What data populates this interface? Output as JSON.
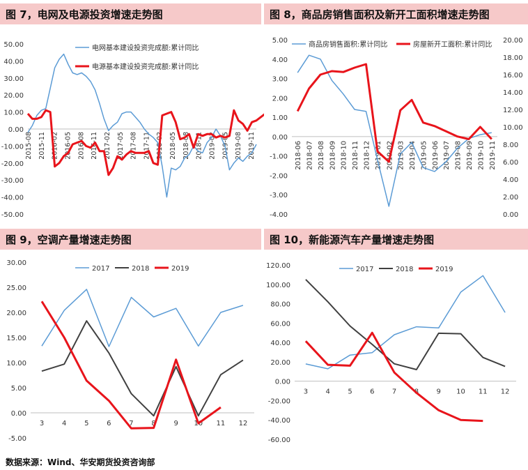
{
  "footer": "数据来源：Wind、华安期货投资咨询部",
  "colors": {
    "blue": "#5b9bd5",
    "red": "#e8141b",
    "dark": "#404040",
    "title_bg": "#f6c9c9"
  },
  "chart_data": [
    {
      "id": "c7",
      "title": "图 7，电网及电源投资增速走势图",
      "type": "line",
      "ylim": [
        -50,
        50
      ],
      "yticks": [
        "50.00",
        "40.00",
        "30.00",
        "20.00",
        "10.00",
        "0.00",
        "-10.00",
        "-20.00",
        "-30.00",
        "-40.00",
        "-50.00"
      ],
      "xtick_labels": [
        "2015-08",
        "2015-11",
        "2016-02",
        "2016-05",
        "2016-08",
        "2016-11",
        "2017-02",
        "2017-05",
        "2017-08",
        "2017-11",
        "2018-02",
        "2018-05",
        "2018-08",
        "2018-11",
        "2019-02",
        "2019-05",
        "2019-08",
        "2019-11"
      ],
      "legend": [
        "电网基本建设投资完成额:累计同比",
        "电源基本建设投资完成额:累计同比"
      ],
      "series": [
        {
          "name": "电网基本建设投资完成额:累计同比",
          "color": "blue",
          "width": 1.5,
          "values": [
            -2,
            2,
            8,
            11,
            12,
            24,
            36,
            41,
            44,
            38,
            33,
            32,
            33,
            31,
            28,
            23,
            15,
            6,
            -1,
            2,
            4,
            9,
            10,
            10,
            7,
            4,
            0,
            -3,
            -5,
            -8,
            -22,
            -40,
            -23,
            -24,
            -22,
            -17,
            -15,
            -10,
            -13,
            -14,
            -8,
            -5,
            0,
            -4,
            -10,
            -24,
            -20,
            -17,
            -19,
            -16,
            -14,
            -9
          ]
        },
        {
          "name": "电源基本建设投资完成额:累计同比",
          "color": "red",
          "width": 3,
          "values": [
            9,
            6,
            6,
            7,
            11,
            10,
            -22,
            -20,
            -16,
            -14,
            -9,
            -8,
            -7,
            -10,
            -11,
            -8,
            -13,
            -13,
            -27,
            -23,
            -16,
            -18,
            -15,
            -13,
            -14,
            -14,
            -14,
            -13,
            -20,
            -21,
            8,
            9,
            10,
            4,
            -6,
            -5,
            -3,
            -11,
            -3,
            -4,
            -3,
            -3,
            -5,
            -4,
            -5,
            -4,
            11,
            5,
            3,
            -1,
            4,
            5,
            7,
            9
          ]
        }
      ]
    },
    {
      "id": "c8",
      "title": "图 8，商品房销售面积及新开工面积增速走势图",
      "type": "line",
      "ylim": [
        -4,
        5
      ],
      "ylim2": [
        0,
        20
      ],
      "yticks": [
        "5.00",
        "4.00",
        "3.00",
        "2.00",
        "1.00",
        "0.00",
        "-1.00",
        "-2.00",
        "-3.00",
        "-4.00"
      ],
      "yticks2": [
        "20.00",
        "18.00",
        "16.00",
        "14.00",
        "12.00",
        "10.00",
        "8.00",
        "6.00",
        "4.00",
        "2.00",
        "0.00"
      ],
      "categories": [
        "2018-06",
        "2018-07",
        "2018-08",
        "2018-09",
        "2018-10",
        "2018-11",
        "2018-12",
        "2019-01",
        "2019-02",
        "2019-03",
        "2019-04",
        "2019-05",
        "2019-06",
        "2019-07",
        "2019-08",
        "2019-09",
        "2019-10",
        "2019-11"
      ],
      "legend": [
        "商品房销售面积:累计同比",
        "房屋新开工面积:累计同比"
      ],
      "series": [
        {
          "name": "商品房销售面积:累计同比",
          "color": "blue",
          "width": 1.5,
          "axis": "left",
          "values": [
            3.3,
            4.2,
            4.0,
            2.9,
            2.2,
            1.4,
            1.3,
            -1.2,
            -3.6,
            -0.9,
            -0.3,
            -1.6,
            -1.8,
            -1.3,
            -0.6,
            -0.1,
            0.1,
            0.2
          ]
        },
        {
          "name": "房屋新开工面积:累计同比",
          "color": "red",
          "width": 3,
          "axis": "right",
          "values": [
            11.8,
            14.4,
            16.0,
            16.4,
            16.3,
            16.8,
            17.2,
            7.2,
            6.0,
            11.9,
            13.1,
            10.5,
            10.1,
            9.5,
            8.9,
            8.6,
            10.0,
            8.6
          ]
        }
      ]
    },
    {
      "id": "c9",
      "title": "图 9，空调产量增速走势图",
      "type": "line",
      "ylim": [
        -5,
        30
      ],
      "yticks": [
        "30.00",
        "25.00",
        "20.00",
        "15.00",
        "10.00",
        "5.00",
        "0.00",
        "-5.00"
      ],
      "categories": [
        "3",
        "4",
        "5",
        "6",
        "7",
        "8",
        "9",
        "10",
        "11",
        "12"
      ],
      "legend": [
        "2017",
        "2018",
        "2019"
      ],
      "series": [
        {
          "name": "2017",
          "color": "blue",
          "width": 1.5,
          "values": [
            13.3,
            20.4,
            24.6,
            13.2,
            23.0,
            19.1,
            20.8,
            13.3,
            20.0,
            21.4
          ]
        },
        {
          "name": "2018",
          "color": "dark",
          "width": 2,
          "values": [
            8.3,
            9.7,
            18.3,
            11.9,
            3.8,
            -0.6,
            9.2,
            -0.6,
            7.6,
            10.5
          ]
        },
        {
          "name": "2019",
          "color": "red",
          "width": 3,
          "values": [
            22.2,
            15.0,
            6.4,
            2.4,
            -3.1,
            -3.0,
            10.6,
            -2.1,
            1.1,
            null
          ]
        }
      ]
    },
    {
      "id": "c10",
      "title": "图 10，新能源汽车产量增速走势图",
      "type": "line",
      "ylim": [
        -60,
        120
      ],
      "yticks": [
        "120.00",
        "100.00",
        "80.00",
        "60.00",
        "40.00",
        "20.00",
        "0.00",
        "-20.00",
        "-40.00",
        "-60.00"
      ],
      "categories": [
        "3",
        "4",
        "5",
        "6",
        "7",
        "8",
        "9",
        "10",
        "11",
        "12"
      ],
      "legend": [
        "2017",
        "2018",
        "2019"
      ],
      "series": [
        {
          "name": "2017",
          "color": "blue",
          "width": 1.5,
          "values": [
            17.8,
            12.8,
            27.0,
            29.5,
            48.0,
            56.2,
            55.0,
            92.0,
            109.0,
            71.0
          ]
        },
        {
          "name": "2018",
          "color": "dark",
          "width": 2,
          "values": [
            105.0,
            82.0,
            57.0,
            38.0,
            18.0,
            12.0,
            49.5,
            49.0,
            24.5,
            15.3
          ]
        },
        {
          "name": "2019",
          "color": "red",
          "width": 3,
          "values": [
            41.4,
            17.0,
            16.0,
            50.0,
            9.0,
            -12.0,
            -30.0,
            -40.0,
            -41.0,
            null
          ]
        }
      ]
    }
  ]
}
